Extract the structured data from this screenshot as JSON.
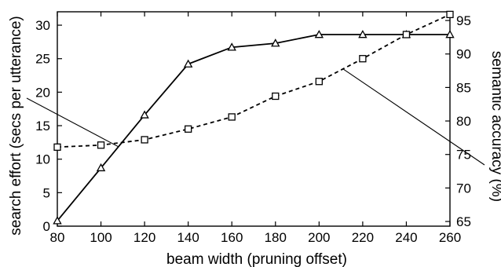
{
  "chart_data": {
    "type": "line",
    "title": "",
    "xlabel": "beam width (pruning offset)",
    "ylabel_left": "search effort (secs per utterance)",
    "ylabel_right": "semantic accuracy (%)",
    "xlim": [
      80,
      260
    ],
    "ylim_left": [
      0,
      32
    ],
    "ylim_right": [
      64.3,
      96.3
    ],
    "x_ticks": [
      "80",
      "100",
      "120",
      "140",
      "160",
      "180",
      "200",
      "220",
      "240",
      "260"
    ],
    "y_left_ticks": [
      "0",
      "5",
      "10",
      "15",
      "20",
      "25",
      "30"
    ],
    "y_right_ticks": [
      "65",
      "70",
      "75",
      "80",
      "85",
      "90",
      "95"
    ],
    "grid": false,
    "legend": "none",
    "x": [
      80,
      100,
      120,
      140,
      160,
      180,
      200,
      220,
      240,
      260
    ],
    "series": [
      {
        "axis": "left",
        "marker": "triangle",
        "line_style": "solid",
        "values": [
          0.8,
          8.7,
          16.6,
          24.2,
          26.7,
          27.3,
          28.6,
          28.6,
          28.6,
          28.6
        ]
      },
      {
        "axis": "right",
        "marker": "square",
        "line_style": "dashed",
        "values": [
          76.1,
          76.4,
          77.2,
          78.8,
          80.6,
          83.7,
          85.9,
          89.3,
          92.9,
          95.9
        ]
      }
    ],
    "colors": {
      "lines": "#000000",
      "background": "#ffffff"
    }
  }
}
